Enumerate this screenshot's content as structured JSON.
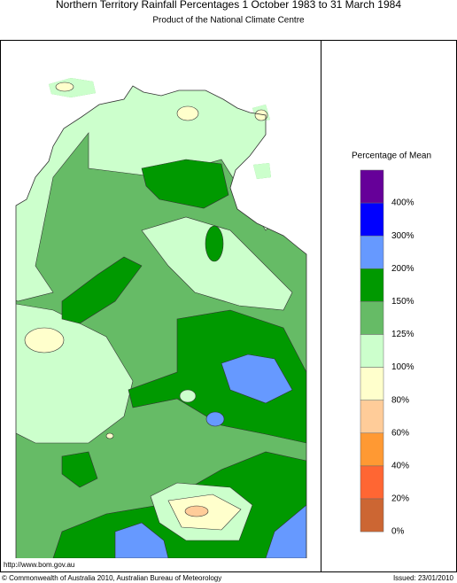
{
  "header": {
    "title": "Northern Territory Rainfall Percentages 1 October 1983 to 31 March 1984",
    "subtitle": "Product of the National Climate Centre"
  },
  "legend": {
    "title": "Percentage of Mean",
    "labels": [
      "400%",
      "300%",
      "200%",
      "150%",
      "125%",
      "100%",
      "80%",
      "60%",
      "40%",
      "20%",
      "0%"
    ],
    "colors": [
      "#660099",
      "#0000ff",
      "#6699ff",
      "#009900",
      "#66bb66",
      "#ccffcc",
      "#ffffcc",
      "#ffcc99",
      "#ff9933",
      "#ff6633",
      "#cc6633"
    ]
  },
  "footer": {
    "url": "http://www.bom.gov.au",
    "copyright": "© Commonwealth of Australia 2010, Australian Bureau of Meteorology",
    "issued": "Issued: 23/01/2010"
  }
}
